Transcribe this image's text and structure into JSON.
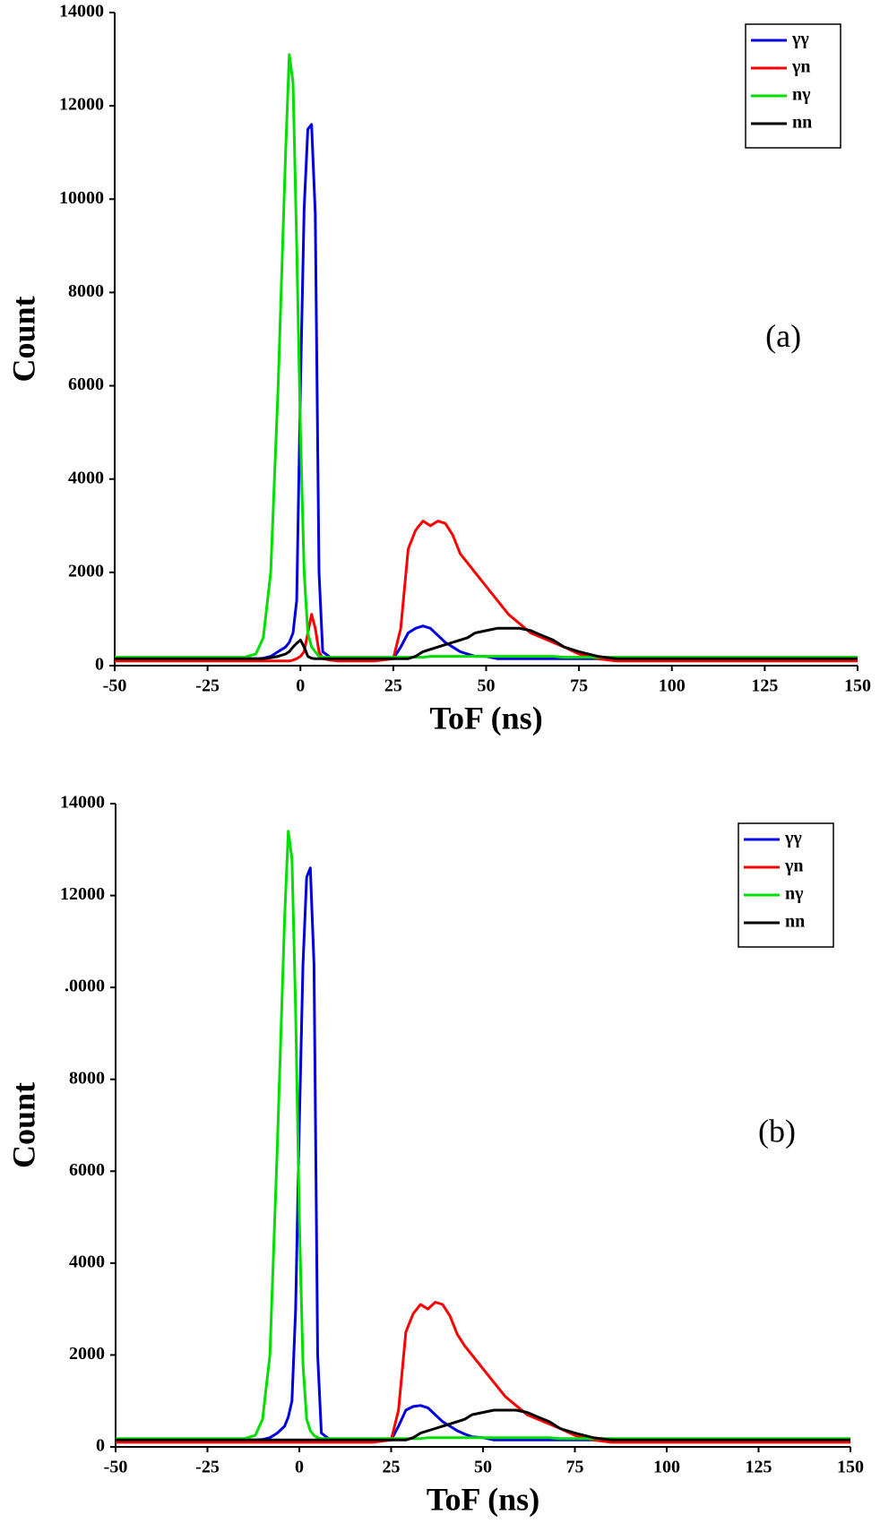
{
  "chart_data": [
    {
      "type": "line",
      "annotation": "(a)",
      "x_label": "ToF (ns)",
      "y_label": "Count",
      "x": [
        -50,
        -40,
        -30,
        -20,
        -15,
        -12,
        -10,
        -8,
        -6,
        -4,
        -3,
        -2,
        -1,
        0,
        1,
        2,
        3,
        4,
        5,
        6,
        8,
        10,
        15,
        20,
        25,
        27,
        29,
        31,
        33,
        35,
        37,
        39,
        41,
        43,
        45,
        47,
        50,
        53,
        56,
        59,
        62,
        65,
        68,
        71,
        75,
        80,
        85,
        90,
        100,
        110,
        120,
        130,
        140,
        150
      ],
      "xlim": [
        -50,
        150
      ],
      "xticks": [
        -50,
        -25,
        0,
        25,
        50,
        75,
        100,
        125,
        150
      ],
      "ylim": [
        0,
        14000
      ],
      "yticks": [
        0,
        2000,
        4000,
        6000,
        8000,
        10000,
        12000,
        14000
      ],
      "legend": "upper right",
      "series": [
        {
          "name": "γγ",
          "color": "#0000e0",
          "values": [
            150,
            150,
            150,
            150,
            150,
            150,
            160,
            200,
            300,
            400,
            500,
            700,
            1400,
            6000,
            9800,
            11500,
            11600,
            9700,
            2000,
            300,
            180,
            150,
            150,
            150,
            150,
            400,
            700,
            800,
            850,
            800,
            650,
            500,
            400,
            300,
            250,
            200,
            200,
            150,
            150,
            150,
            150,
            150,
            150,
            150,
            150,
            150,
            150,
            150,
            150,
            150,
            150,
            150,
            150,
            150
          ]
        },
        {
          "name": "γn",
          "color": "#ff0000",
          "values": [
            100,
            100,
            100,
            100,
            100,
            100,
            100,
            100,
            100,
            100,
            100,
            120,
            150,
            200,
            300,
            700,
            1100,
            800,
            300,
            150,
            120,
            100,
            100,
            100,
            150,
            800,
            2500,
            2900,
            3100,
            3000,
            3100,
            3050,
            2800,
            2400,
            2200,
            2000,
            1700,
            1400,
            1100,
            900,
            700,
            600,
            500,
            400,
            250,
            150,
            100,
            100,
            100,
            100,
            100,
            100,
            100,
            100
          ]
        },
        {
          "name": "nγ",
          "color": "#00e000",
          "values": [
            180,
            180,
            180,
            180,
            180,
            250,
            600,
            2000,
            6000,
            11000,
            13100,
            12500,
            9000,
            5000,
            2000,
            700,
            400,
            300,
            200,
            180,
            180,
            180,
            180,
            180,
            180,
            180,
            180,
            180,
            180,
            200,
            200,
            200,
            200,
            200,
            200,
            200,
            200,
            200,
            200,
            200,
            200,
            200,
            200,
            180,
            180,
            180,
            180,
            180,
            180,
            180,
            180,
            180,
            180,
            180
          ]
        },
        {
          "name": "nn",
          "color": "#000000",
          "values": [
            150,
            150,
            150,
            150,
            150,
            150,
            150,
            170,
            200,
            250,
            300,
            400,
            480,
            550,
            400,
            200,
            160,
            150,
            150,
            150,
            150,
            150,
            150,
            150,
            150,
            150,
            150,
            200,
            300,
            350,
            400,
            450,
            500,
            550,
            600,
            700,
            750,
            800,
            800,
            800,
            750,
            650,
            550,
            400,
            300,
            200,
            150,
            150,
            150,
            150,
            150,
            150,
            150,
            150
          ]
        }
      ]
    },
    {
      "type": "line",
      "annotation": "(b)",
      "x_label": "ToF (ns)",
      "y_label": "Count",
      "x": [
        -50,
        -40,
        -30,
        -20,
        -15,
        -12,
        -10,
        -8,
        -6,
        -4,
        -3,
        -2,
        -1,
        0,
        1,
        2,
        3,
        4,
        5,
        6,
        8,
        10,
        15,
        20,
        25,
        27,
        29,
        31,
        33,
        35,
        37,
        39,
        41,
        43,
        45,
        47,
        50,
        53,
        56,
        59,
        62,
        65,
        68,
        71,
        75,
        80,
        85,
        90,
        100,
        110,
        120,
        130,
        140,
        150
      ],
      "xlim": [
        -50,
        150
      ],
      "xticks": [
        -50,
        -25,
        0,
        25,
        50,
        75,
        100,
        125,
        150
      ],
      "ylim": [
        0,
        14000
      ],
      "yticks": [
        0,
        2000,
        4000,
        6000,
        8000,
        {
          "value": 10000,
          "label": ".0000"
        },
        12000,
        14000
      ],
      "legend": "upper right",
      "series": [
        {
          "name": "γγ",
          "color": "#0000e0",
          "values": [
            150,
            150,
            150,
            150,
            150,
            150,
            160,
            200,
            300,
            450,
            650,
            1000,
            3000,
            7000,
            10500,
            12400,
            12600,
            10500,
            2000,
            300,
            180,
            150,
            150,
            150,
            150,
            450,
            800,
            880,
            900,
            850,
            700,
            550,
            450,
            350,
            280,
            220,
            200,
            150,
            150,
            150,
            150,
            150,
            150,
            150,
            150,
            150,
            150,
            150,
            150,
            150,
            150,
            150,
            150,
            150
          ]
        },
        {
          "name": "γn",
          "color": "#ff0000",
          "values": [
            100,
            100,
            100,
            100,
            100,
            100,
            100,
            100,
            100,
            100,
            100,
            100,
            100,
            100,
            100,
            100,
            100,
            100,
            100,
            100,
            100,
            100,
            100,
            100,
            150,
            800,
            2500,
            2900,
            3100,
            3000,
            3150,
            3100,
            2850,
            2450,
            2200,
            2000,
            1700,
            1400,
            1100,
            900,
            700,
            600,
            500,
            400,
            250,
            150,
            100,
            100,
            100,
            100,
            100,
            100,
            100,
            100
          ]
        },
        {
          "name": "nγ",
          "color": "#00e000",
          "values": [
            180,
            180,
            180,
            180,
            180,
            250,
            600,
            2000,
            6500,
            11500,
            13400,
            12800,
            9500,
            5000,
            1800,
            600,
            350,
            250,
            200,
            180,
            180,
            180,
            180,
            180,
            180,
            180,
            180,
            180,
            180,
            200,
            200,
            200,
            200,
            200,
            200,
            200,
            200,
            200,
            200,
            200,
            200,
            200,
            200,
            180,
            180,
            180,
            180,
            180,
            180,
            180,
            180,
            180,
            180,
            180
          ]
        },
        {
          "name": "nn",
          "color": "#000000",
          "values": [
            150,
            150,
            150,
            150,
            150,
            150,
            150,
            150,
            150,
            150,
            150,
            150,
            150,
            150,
            150,
            150,
            150,
            150,
            150,
            150,
            150,
            150,
            150,
            150,
            150,
            150,
            150,
            200,
            300,
            350,
            400,
            450,
            500,
            550,
            600,
            700,
            750,
            800,
            800,
            800,
            750,
            650,
            550,
            400,
            300,
            200,
            150,
            150,
            150,
            150,
            150,
            150,
            150,
            150
          ]
        }
      ]
    }
  ]
}
